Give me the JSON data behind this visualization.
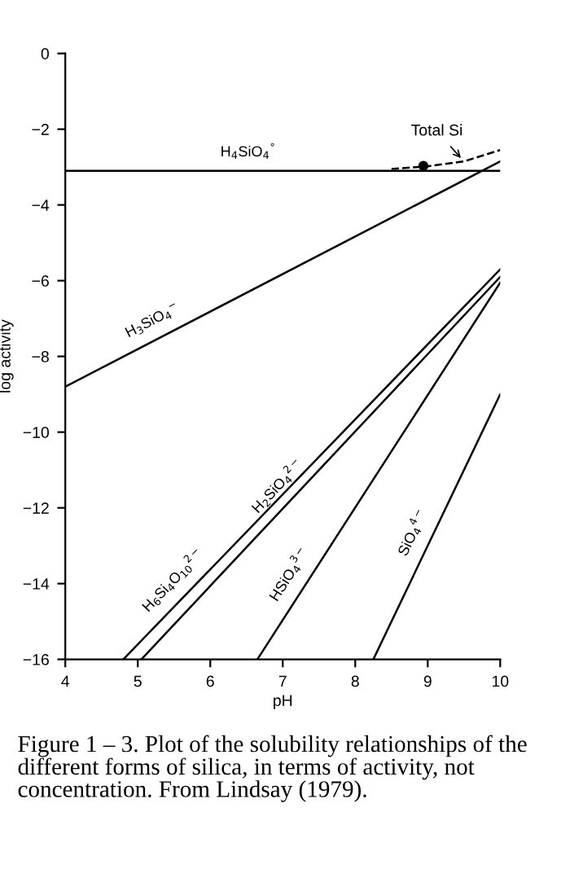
{
  "chart_data": {
    "type": "line",
    "xlabel": "pH",
    "ylabel": "log activity",
    "xlim": [
      4,
      10
    ],
    "ylim": [
      -16,
      0
    ],
    "xticks": [
      4,
      5,
      6,
      7,
      8,
      9,
      10
    ],
    "yticks": [
      0,
      -2,
      -4,
      -6,
      -8,
      -10,
      -12,
      -14,
      -16
    ],
    "series": [
      {
        "name": "H$_{4}$SiO$_{4}$$^{°}$",
        "color": "#000000",
        "x": [
          4,
          10
        ],
        "values": [
          -3.1,
          -3.1
        ]
      },
      {
        "name": "H$_{3}$SiO$_{4}$$^{−}$",
        "color": "#000000",
        "x": [
          4,
          10
        ],
        "values": [
          -8.8,
          -2.85
        ]
      },
      {
        "name": "Total Si",
        "color": "#000000",
        "line_style": "dashed",
        "x": [
          8.5,
          9,
          9.5,
          10
        ],
        "values": [
          -3.05,
          -2.98,
          -2.85,
          -2.55
        ]
      },
      {
        "type": "scatter",
        "color": "#000000",
        "marker": "circle",
        "x": [
          8.94
        ],
        "values": [
          -2.97
        ]
      },
      {
        "name": "H$_{6}$Si$_{4}$O$_{10}$$^{2−}$",
        "color": "#000000",
        "x": [
          4.8,
          10
        ],
        "values": [
          -16,
          -5.7
        ]
      },
      {
        "name": "H$_{2}$SiO$_{4}$$^{2−}$",
        "color": "#000000",
        "x": [
          5.05,
          10
        ],
        "values": [
          -16,
          -5.9
        ]
      },
      {
        "name": "HSiO$_{4}$$^{3−}$",
        "color": "#000000",
        "x": [
          6.65,
          10
        ],
        "values": [
          -16,
          -6.05
        ]
      },
      {
        "name": "SiO$_{4}$$^{4−}$",
        "color": "#000000",
        "x": [
          8.25,
          10
        ],
        "values": [
          -16,
          -9.0
        ]
      }
    ],
    "annotations": [
      "Figure 1 – 3. Plot of the solubility relationships of the different forms of silica, in terms of activity, not concentration. From Lindsay (1979)."
    ]
  }
}
